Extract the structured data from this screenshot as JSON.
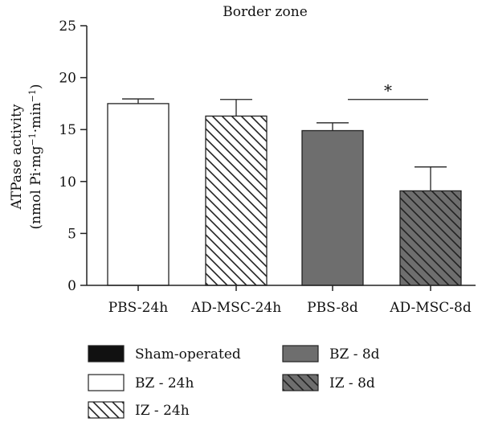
{
  "chart_data": {
    "type": "bar",
    "title": "Border zone",
    "ylabel_line1": "ATPase activity",
    "ylabel_line2_prefix": "(nmol Pi·mg",
    "ylabel_line2_sup1": "−1",
    "ylabel_line2_mid": "·min",
    "ylabel_line2_sup2": "−1",
    "ylabel_line2_suffix": ")",
    "ylim": [
      0,
      25
    ],
    "yticks": [
      "0",
      "5",
      "10",
      "15",
      "20",
      "25"
    ],
    "categories": [
      "PBS-24h",
      "AD-MSC-24h",
      "PBS-8d",
      "AD-MSC-8d"
    ],
    "values": [
      17.5,
      16.3,
      14.9,
      9.1
    ],
    "errors": [
      0.45,
      1.6,
      0.75,
      2.3
    ],
    "styles": [
      "white",
      "hatch-light",
      "gray",
      "hatch-gray"
    ],
    "significance": {
      "label": "*",
      "from": 2,
      "to": 3,
      "y": 17.9
    },
    "legend": [
      {
        "label": "Sham-operated",
        "style": "black"
      },
      {
        "label": "BZ - 24h",
        "style": "white"
      },
      {
        "label": "IZ - 24h",
        "style": "hatch-light"
      },
      {
        "label": "BZ - 8d",
        "style": "gray"
      },
      {
        "label": "IZ - 8d",
        "style": "hatch-gray"
      }
    ],
    "colors": {
      "gray": "#6e6e6e",
      "black": "#111111",
      "axis": "#222222"
    }
  }
}
